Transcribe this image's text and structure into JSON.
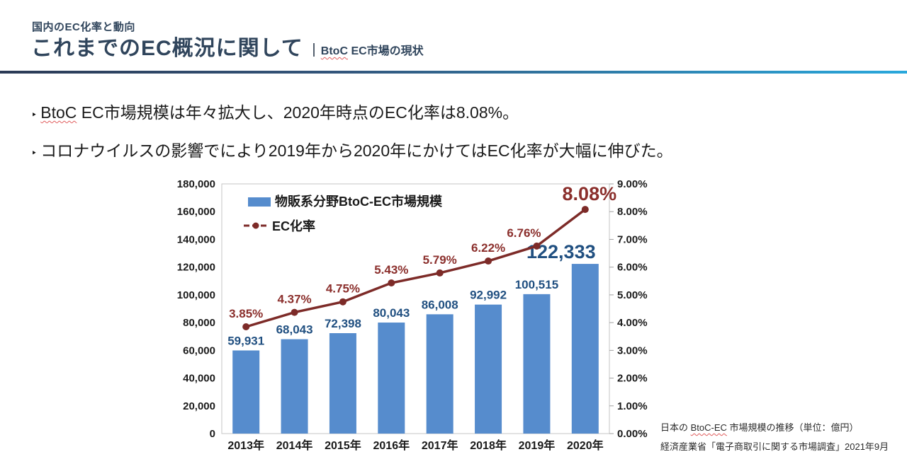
{
  "header": {
    "eyebrow": "国内のEC化率と動向",
    "title": "これまでのEC概況に関して",
    "subtitle_highlight": "BtoC",
    "subtitle_rest": " EC市場の現状"
  },
  "bullets": [
    {
      "marker": "‣",
      "highlight": "BtoC",
      "text": " EC市場規模は年々拡大し、2020年時点のEC化率は8.08%。"
    },
    {
      "marker": "‣",
      "highlight": "",
      "text": "コロナウイルスの影響でにより2019年から2020年にかけてはEC化率が大幅に伸びた。"
    }
  ],
  "chart_data": {
    "type": "bar+line",
    "categories": [
      "2013年",
      "2014年",
      "2015年",
      "2016年",
      "2017年",
      "2018年",
      "2019年",
      "2020年"
    ],
    "series": [
      {
        "name": "物販系分野BtoC-EC市場規模",
        "type": "bar",
        "axis": "left",
        "color": "#568ccd",
        "label_color": "#215081",
        "values": [
          59931,
          68043,
          72398,
          80043,
          86008,
          92992,
          100515,
          122333
        ],
        "labels": [
          "59,931",
          "68,043",
          "72,398",
          "80,043",
          "86,008",
          "92,992",
          "100,515",
          "122,333"
        ]
      },
      {
        "name": "EC化率",
        "type": "line",
        "axis": "right",
        "color": "#7d2b28",
        "label_color": "#8b2f2c",
        "values": [
          3.85,
          4.37,
          4.75,
          5.43,
          5.79,
          6.22,
          6.76,
          8.08
        ],
        "labels": [
          "3.85%",
          "4.37%",
          "4.75%",
          "5.43%",
          "5.79%",
          "6.22%",
          "6.76%",
          "8.08%"
        ]
      }
    ],
    "left_axis": {
      "min": 0,
      "max": 180000,
      "step": 20000,
      "tick_labels": [
        "0",
        "20,000",
        "40,000",
        "60,000",
        "80,000",
        "100,000",
        "120,000",
        "140,000",
        "160,000",
        "180,000"
      ]
    },
    "right_axis": {
      "min": 0,
      "max": 9,
      "step": 1,
      "tick_labels": [
        "0.00%",
        "1.00%",
        "2.00%",
        "3.00%",
        "4.00%",
        "5.00%",
        "6.00%",
        "7.00%",
        "8.00%",
        "9.00%"
      ]
    },
    "legend_position": "top-left-inside",
    "grid": false,
    "emphasized_last_point": true
  },
  "source": {
    "line1_prefix": "日本の ",
    "line1_highlight": "BtoC-EC",
    "line1_suffix": " 市場規模の推移（単位：億円）",
    "line2": "経済産業省「電子商取引に関する市場調査」2021年9月"
  },
  "colors": {
    "accent_navy": "#30455c",
    "rule_gradient_start": "#2b3a55",
    "rule_gradient_end": "#29a8dc",
    "axis_text": "#1a1a1a",
    "plot_border": "#c6c6c6",
    "wavy_underline": "#e05c5c"
  }
}
